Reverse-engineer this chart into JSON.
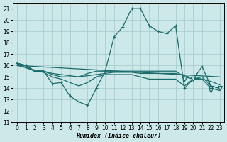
{
  "xlabel": "Humidex (Indice chaleur)",
  "x_ticks": [
    0,
    1,
    2,
    3,
    4,
    5,
    6,
    7,
    8,
    9,
    10,
    11,
    12,
    13,
    14,
    15,
    16,
    17,
    18,
    19,
    20,
    21,
    22,
    23
  ],
  "ylim": [
    11,
    21.5
  ],
  "xlim": [
    -0.5,
    23.5
  ],
  "yticks": [
    11,
    12,
    13,
    14,
    15,
    16,
    17,
    18,
    19,
    20,
    21
  ],
  "bg_color": "#cce8e8",
  "grid_color": "#aacece",
  "line_color": "#1a6b6b",
  "line1": [
    16.2,
    16.0,
    15.5,
    15.5,
    14.4,
    14.5,
    13.3,
    12.8,
    12.5,
    14.0,
    15.5,
    18.5,
    19.4,
    21.0,
    21.0,
    19.5,
    19.0,
    18.8,
    19.5,
    14.0,
    14.8,
    15.9,
    14.2,
    14.0
  ],
  "line2": [
    16.2,
    16.0,
    15.5,
    15.5,
    15.2,
    15.0,
    15.0,
    15.0,
    15.3,
    15.5,
    15.5,
    15.5,
    15.5,
    15.5,
    15.5,
    15.5,
    15.5,
    15.5,
    15.5,
    15.0,
    14.8,
    15.0,
    14.2,
    14.0
  ],
  "line3": [
    16.0,
    15.8,
    15.6,
    15.5,
    15.3,
    15.2,
    15.1,
    15.0,
    15.1,
    15.2,
    15.3,
    15.4,
    15.4,
    15.4,
    15.3,
    15.3,
    15.3,
    15.3,
    15.3,
    15.1,
    14.9,
    14.8,
    14.6,
    14.3
  ],
  "line4_x": [
    0,
    23
  ],
  "line4_y": [
    16.0,
    15.0
  ],
  "line5": [
    16.2,
    15.8,
    15.5,
    15.4,
    15.0,
    14.8,
    14.5,
    14.2,
    14.5,
    15.0,
    15.2,
    15.2,
    15.2,
    15.2,
    15.0,
    14.8,
    14.8,
    14.8,
    14.8,
    14.2,
    14.8,
    14.8,
    14.0,
    13.8
  ],
  "tri_x": [
    19,
    20,
    22,
    22,
    23
  ],
  "tri_y": [
    14.8,
    14.8,
    14.0,
    13.8,
    14.0
  ]
}
